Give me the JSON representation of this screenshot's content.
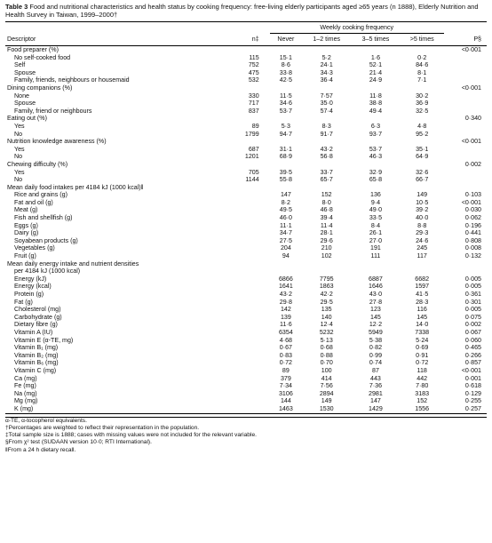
{
  "caption": {
    "label": "Table 3",
    "text": " Food and nutritional characteristics and health status by cooking frequency: free-living elderly participants aged ≥65 years (n 1888), Elderly Nutrition and Health Survey in Taiwan, 1999–2000†"
  },
  "header": {
    "group": "Weekly cooking frequency",
    "descriptor": "Descriptor",
    "n": "n‡",
    "cols": [
      "Never",
      "1–2 times",
      "3–5 times",
      ">5 times"
    ],
    "p": "P§"
  },
  "rows": [
    {
      "d": "Food preparer (%)",
      "n": "",
      "v": [
        "",
        "",
        "",
        ""
      ],
      "p": "<0·001",
      "indent": 0
    },
    {
      "d": "No self-cooked food",
      "n": "115",
      "v": [
        "15·1",
        "5·2",
        "1·6",
        "0·2"
      ],
      "p": "",
      "indent": 1
    },
    {
      "d": "Self",
      "n": "752",
      "v": [
        "8·6",
        "24·1",
        "52·1",
        "84·6"
      ],
      "p": "",
      "indent": 1
    },
    {
      "d": "Spouse",
      "n": "475",
      "v": [
        "33·8",
        "34·3",
        "21·4",
        "8·1"
      ],
      "p": "",
      "indent": 1
    },
    {
      "d": "Family, friends, neighbours or housemaid",
      "n": "532",
      "v": [
        "42·5",
        "36·4",
        "24·9",
        "7·1"
      ],
      "p": "",
      "indent": 1
    },
    {
      "d": "Dining companions (%)",
      "n": "",
      "v": [
        "",
        "",
        "",
        ""
      ],
      "p": "<0·001",
      "indent": 0
    },
    {
      "d": "None",
      "n": "330",
      "v": [
        "11·5",
        "7·57",
        "11·8",
        "30·2"
      ],
      "p": "",
      "indent": 1
    },
    {
      "d": "Spouse",
      "n": "717",
      "v": [
        "34·6",
        "35·0",
        "38·8",
        "36·9"
      ],
      "p": "",
      "indent": 1
    },
    {
      "d": "Family, friend or neighbours",
      "n": "837",
      "v": [
        "53·7",
        "57·4",
        "49·4",
        "32·5"
      ],
      "p": "",
      "indent": 1
    },
    {
      "d": "Eating out (%)",
      "n": "",
      "v": [
        "",
        "",
        "",
        ""
      ],
      "p": "0·340",
      "indent": 0
    },
    {
      "d": "Yes",
      "n": "89",
      "v": [
        "5·3",
        "8·3",
        "6·3",
        "4·8"
      ],
      "p": "",
      "indent": 1
    },
    {
      "d": "No",
      "n": "1799",
      "v": [
        "94·7",
        "91·7",
        "93·7",
        "95·2"
      ],
      "p": "",
      "indent": 1
    },
    {
      "d": "Nutrition knowledge awareness (%)",
      "n": "",
      "v": [
        "",
        "",
        "",
        ""
      ],
      "p": "<0·001",
      "indent": 0
    },
    {
      "d": "Yes",
      "n": "687",
      "v": [
        "31·1",
        "43·2",
        "53·7",
        "35·1"
      ],
      "p": "",
      "indent": 1
    },
    {
      "d": "No",
      "n": "1201",
      "v": [
        "68·9",
        "56·8",
        "46·3",
        "64·9"
      ],
      "p": "",
      "indent": 1
    },
    {
      "d": "Chewing difficulty (%)",
      "n": "",
      "v": [
        "",
        "",
        "",
        ""
      ],
      "p": "0·002",
      "indent": 0
    },
    {
      "d": "Yes",
      "n": "705",
      "v": [
        "39·5",
        "33·7",
        "32·9",
        "32·6"
      ],
      "p": "",
      "indent": 1
    },
    {
      "d": "No",
      "n": "1144",
      "v": [
        "55·8",
        "65·7",
        "65·8",
        "66·7"
      ],
      "p": "",
      "indent": 1
    },
    {
      "d": "Mean daily food intakes per 4184 kJ (1000 kcal)‖",
      "n": "",
      "v": [
        "",
        "",
        "",
        ""
      ],
      "p": "",
      "indent": 0
    },
    {
      "d": "Rice and grains (g)",
      "n": "",
      "v": [
        "147",
        "152",
        "136",
        "149"
      ],
      "p": "0·103",
      "indent": 1
    },
    {
      "d": "Fat and oil (g)",
      "n": "",
      "v": [
        "8·2",
        "8·0",
        "9·4",
        "10·5"
      ],
      "p": "<0·001",
      "indent": 1
    },
    {
      "d": "Meat (g)",
      "n": "",
      "v": [
        "49·5",
        "46·8",
        "49·0",
        "39·2"
      ],
      "p": "0·030",
      "indent": 1
    },
    {
      "d": "Fish and shellfish (g)",
      "n": "",
      "v": [
        "46·0",
        "39·4",
        "33·5",
        "40·0"
      ],
      "p": "0·062",
      "indent": 1
    },
    {
      "d": "Eggs (g)",
      "n": "",
      "v": [
        "11·1",
        "11·4",
        "8·4",
        "8·8"
      ],
      "p": "0·196",
      "indent": 1
    },
    {
      "d": "Dairy (g)",
      "n": "",
      "v": [
        "34·7",
        "28·1",
        "26·1",
        "29·3"
      ],
      "p": "0·441",
      "indent": 1
    },
    {
      "d": "Soyabean products (g)",
      "n": "",
      "v": [
        "27·5",
        "29·6",
        "27·0",
        "24·6"
      ],
      "p": "0·808",
      "indent": 1
    },
    {
      "d": "Vegetables (g)",
      "n": "",
      "v": [
        "204",
        "210",
        "191",
        "245"
      ],
      "p": "0·008",
      "indent": 1
    },
    {
      "d": "Fruit (g)",
      "n": "",
      "v": [
        "94",
        "102",
        "111",
        "117"
      ],
      "p": "0·132",
      "indent": 1
    },
    {
      "d": "Mean daily energy intake and nutrient densities",
      "n": "",
      "v": [
        "",
        "",
        "",
        ""
      ],
      "p": "",
      "indent": 0
    },
    {
      "d": "per 4184 kJ (1000 kcal)",
      "n": "",
      "v": [
        "",
        "",
        "",
        ""
      ],
      "p": "",
      "indent": 1
    },
    {
      "d": "Energy (kJ)",
      "n": "",
      "v": [
        "6866",
        "7795",
        "6887",
        "6682"
      ],
      "p": "0·005",
      "indent": 1
    },
    {
      "d": "Energy (kcal)",
      "n": "",
      "v": [
        "1641",
        "1863",
        "1646",
        "1597"
      ],
      "p": "0·005",
      "indent": 1
    },
    {
      "d": "Protein (g)",
      "n": "",
      "v": [
        "43·2",
        "42·2",
        "43·0",
        "41·5"
      ],
      "p": "0·361",
      "indent": 1
    },
    {
      "d": "Fat (g)",
      "n": "",
      "v": [
        "29·8",
        "29·5",
        "27·8",
        "28·3"
      ],
      "p": "0·301",
      "indent": 1
    },
    {
      "d": "Cholesterol (mg)",
      "n": "",
      "v": [
        "142",
        "135",
        "123",
        "116"
      ],
      "p": "0·005",
      "indent": 1
    },
    {
      "d": "Carbohydrate (g)",
      "n": "",
      "v": [
        "139",
        "140",
        "145",
        "145"
      ],
      "p": "0·075",
      "indent": 1
    },
    {
      "d": "Dietary fibre (g)",
      "n": "",
      "v": [
        "11·6",
        "12·4",
        "12·2",
        "14·0"
      ],
      "p": "0·002",
      "indent": 1
    },
    {
      "d": "Vitamin A (IU)",
      "n": "",
      "v": [
        "6354",
        "5232",
        "5949",
        "7338"
      ],
      "p": "0·067",
      "indent": 1
    },
    {
      "d": "Vitamin E (α-TE, mg)",
      "n": "",
      "v": [
        "4·68",
        "5·13",
        "5·38",
        "5·24"
      ],
      "p": "0·060",
      "indent": 1
    },
    {
      "d": "Vitamin B₁ (mg)",
      "n": "",
      "v": [
        "0·67",
        "0·68",
        "0·82",
        "0·69"
      ],
      "p": "0·465",
      "indent": 1
    },
    {
      "d": "Vitamin B₂ (mg)",
      "n": "",
      "v": [
        "0·83",
        "0·88",
        "0·99",
        "0·91"
      ],
      "p": "0·266",
      "indent": 1
    },
    {
      "d": "Vitamin B₆ (mg)",
      "n": "",
      "v": [
        "0·72",
        "0·70",
        "0·74",
        "0·72"
      ],
      "p": "0·857",
      "indent": 1
    },
    {
      "d": "Vitamin C (mg)",
      "n": "",
      "v": [
        "89",
        "100",
        "87",
        "118"
      ],
      "p": "<0·001",
      "indent": 1
    },
    {
      "d": "Ca (mg)",
      "n": "",
      "v": [
        "379",
        "414",
        "443",
        "442"
      ],
      "p": "0·001",
      "indent": 1
    },
    {
      "d": "Fe (mg)",
      "n": "",
      "v": [
        "7·34",
        "7·56",
        "7·36",
        "7·80"
      ],
      "p": "0·618",
      "indent": 1
    },
    {
      "d": "Na (mg)",
      "n": "",
      "v": [
        "3106",
        "2894",
        "2981",
        "3183"
      ],
      "p": "0·129",
      "indent": 1
    },
    {
      "d": "Mg (mg)",
      "n": "",
      "v": [
        "144",
        "149",
        "147",
        "152"
      ],
      "p": "0·255",
      "indent": 1
    },
    {
      "d": "K (mg)",
      "n": "",
      "v": [
        "1463",
        "1530",
        "1429",
        "1556"
      ],
      "p": "0·257",
      "indent": 1
    }
  ],
  "footnotes": [
    "α-TE, α-tocopherol equivalents.",
    "†Percentages are weighted to reflect their representation in the population.",
    "‡Total sample size is 1888; cases with missing values were not included for the relevant variable.",
    "§From χ² test (SUDAAN version 10·0; RTI International).",
    "‖From a 24 h dietary recall."
  ]
}
